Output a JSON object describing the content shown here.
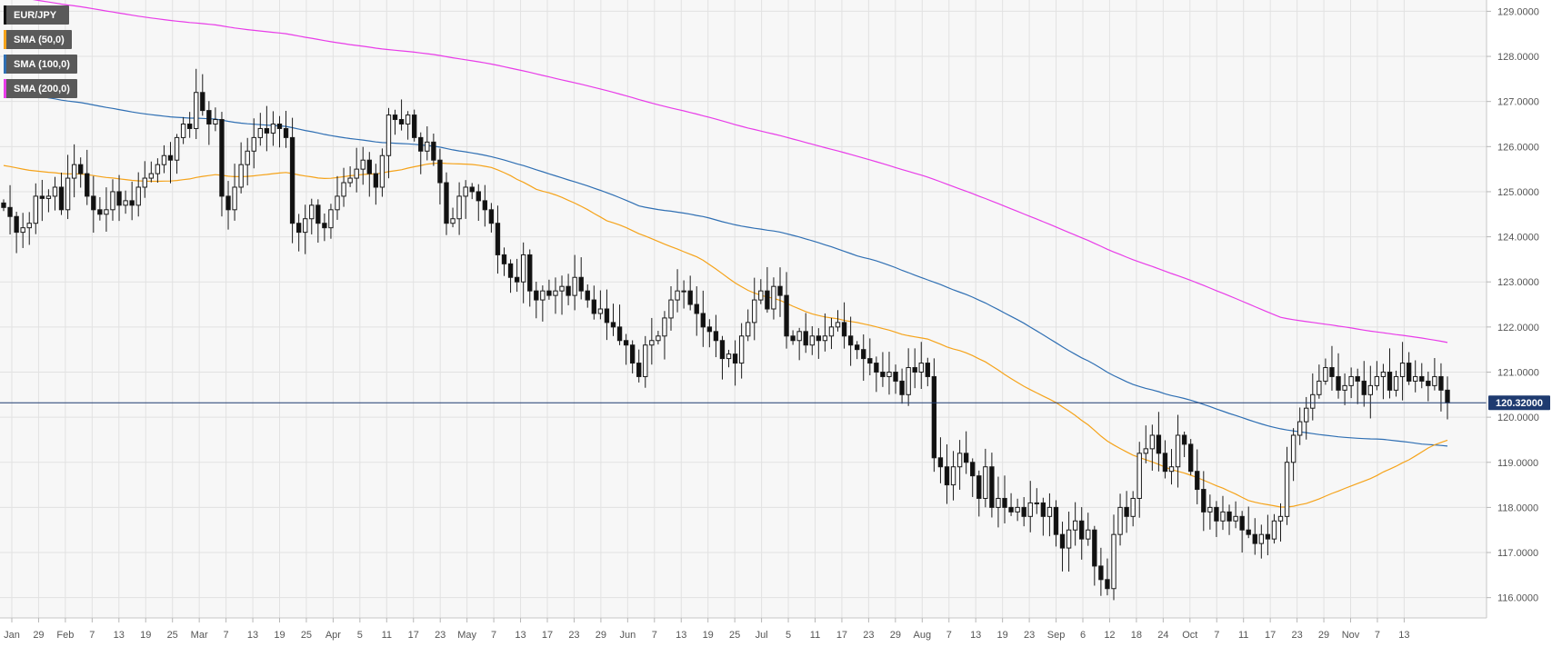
{
  "chart_data": {
    "type": "candlestick",
    "symbol": "EUR/JPY",
    "current_price_label": "120.32000",
    "current_price": 120.32,
    "ylim": [
      115.55,
      129.25
    ],
    "y_ticks": [
      "129.0000",
      "128.0000",
      "127.0000",
      "126.0000",
      "125.0000",
      "124.0000",
      "123.0000",
      "122.0000",
      "121.0000",
      "120.0000",
      "119.0000",
      "118.0000",
      "117.0000",
      "116.0000"
    ],
    "x_ticks": [
      "Jan",
      "29",
      "Feb",
      "7",
      "13",
      "19",
      "25",
      "Mar",
      "7",
      "13",
      "19",
      "25",
      "Apr",
      "5",
      "11",
      "17",
      "23",
      "May",
      "7",
      "13",
      "17",
      "23",
      "29",
      "Jun",
      "7",
      "13",
      "19",
      "25",
      "Jul",
      "5",
      "11",
      "17",
      "23",
      "29",
      "Aug",
      "7",
      "13",
      "19",
      "23",
      "Sep",
      "6",
      "12",
      "18",
      "24",
      "Oct",
      "7",
      "11",
      "17",
      "23",
      "29",
      "Nov",
      "7",
      "13"
    ],
    "legend": [
      {
        "label": "EUR/JPY",
        "color": "#111111"
      },
      {
        "label": "SMA (50,0)",
        "color": "#f5a31a"
      },
      {
        "label": "SMA (100,0)",
        "color": "#2f6fb3"
      },
      {
        "label": "SMA (200,0)",
        "color": "#e83ce8"
      }
    ],
    "closes": [
      124.65,
      124.45,
      124.1,
      124.2,
      124.3,
      124.9,
      124.85,
      124.9,
      125.1,
      124.6,
      125.3,
      125.6,
      125.4,
      124.9,
      124.6,
      124.5,
      124.6,
      125.0,
      124.7,
      124.8,
      124.7,
      125.1,
      125.3,
      125.4,
      125.6,
      125.8,
      125.7,
      126.2,
      126.5,
      126.4,
      127.2,
      126.8,
      126.5,
      126.6,
      124.9,
      124.6,
      125.1,
      125.6,
      125.9,
      126.2,
      126.4,
      126.3,
      126.5,
      126.4,
      126.2,
      124.3,
      124.1,
      124.4,
      124.7,
      124.3,
      124.2,
      124.6,
      124.9,
      125.2,
      125.3,
      125.5,
      125.7,
      125.4,
      125.1,
      125.8,
      126.7,
      126.6,
      126.5,
      126.7,
      126.2,
      125.9,
      126.1,
      125.7,
      125.2,
      124.3,
      124.4,
      124.9,
      125.1,
      125.0,
      124.8,
      124.6,
      124.3,
      123.6,
      123.4,
      123.1,
      123.0,
      123.6,
      122.8,
      122.6,
      122.8,
      122.7,
      122.8,
      122.9,
      122.7,
      123.1,
      122.8,
      122.6,
      122.3,
      122.4,
      122.1,
      122.0,
      121.7,
      121.6,
      121.2,
      120.9,
      121.6,
      121.7,
      121.8,
      122.2,
      122.6,
      122.8,
      122.8,
      122.5,
      122.3,
      122.0,
      121.9,
      121.7,
      121.3,
      121.4,
      121.2,
      121.8,
      122.1,
      122.6,
      122.8,
      122.4,
      122.9,
      122.7,
      121.8,
      121.7,
      121.9,
      121.6,
      121.8,
      121.7,
      121.8,
      122.0,
      122.1,
      121.8,
      121.6,
      121.5,
      121.3,
      121.2,
      121.0,
      120.9,
      121.0,
      120.8,
      120.5,
      121.1,
      121.0,
      121.2,
      120.9,
      119.1,
      118.9,
      118.5,
      118.9,
      119.2,
      119.0,
      118.7,
      118.2,
      118.9,
      118.0,
      118.2,
      118.0,
      117.9,
      118.0,
      117.8,
      118.1,
      118.1,
      117.8,
      118.0,
      117.4,
      117.1,
      117.5,
      117.7,
      117.3,
      117.5,
      116.7,
      116.4,
      116.2,
      117.4,
      118.0,
      117.8,
      118.2,
      119.2,
      119.3,
      119.6,
      119.2,
      118.8,
      118.9,
      119.6,
      119.4,
      118.8,
      118.4,
      117.9,
      118.0,
      117.7,
      117.9,
      117.7,
      117.8,
      117.5,
      117.4,
      117.2,
      117.4,
      117.3,
      117.7,
      117.8,
      119.0,
      119.6,
      119.9,
      120.2,
      120.5,
      120.8,
      121.1,
      120.9,
      120.6,
      120.7,
      120.9,
      120.8,
      120.5,
      120.7,
      120.9,
      121.0,
      120.6,
      120.9,
      121.2,
      120.8,
      120.9,
      120.8,
      120.7,
      120.9,
      120.6,
      120.32
    ]
  }
}
